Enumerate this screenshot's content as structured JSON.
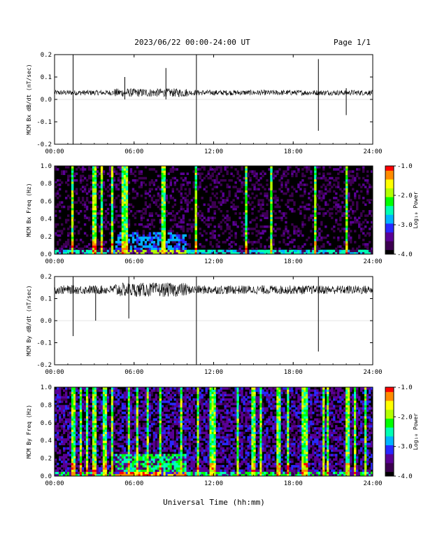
{
  "header": {
    "date_range": "2023/06/22  00:00-24:00 UT",
    "page": "Page 1/1"
  },
  "xlabel": "Universal Time (hh:mm)",
  "colorbar": {
    "label": "Log₁₀ Power",
    "ticks": [
      "-1.0",
      "-2.0",
      "-3.0",
      "-4.0"
    ],
    "range": [
      -4.0,
      -1.0
    ],
    "colors": [
      "#000000",
      "#3c0050",
      "#5a0096",
      "#2828ff",
      "#00b4ff",
      "#00ffb4",
      "#00ff00",
      "#b4ff00",
      "#ffff00",
      "#ff8c00",
      "#ff0000"
    ]
  },
  "chart_data": [
    {
      "type": "line",
      "ylabel": "MCM Bx dB/dt (nT/sec)",
      "xlim": [
        0,
        24
      ],
      "ylim": [
        -0.2,
        0.2
      ],
      "x_ticks": [
        "00:00",
        "06:00",
        "12:00",
        "18:00",
        "24:00"
      ],
      "y_ticks": [
        "0.2",
        "0.1",
        "0.0",
        "-0.1",
        "-0.2"
      ],
      "baseline": 0.03,
      "noise_amplitude": 0.012,
      "color": "#000000",
      "spikes": [
        {
          "x": 1.4,
          "y": [
            -0.2,
            0.2
          ]
        },
        {
          "x": 5.3,
          "y": [
            0.0,
            0.1
          ]
        },
        {
          "x": 8.4,
          "y": [
            0.0,
            0.14
          ]
        },
        {
          "x": 10.7,
          "y": [
            -0.2,
            0.2
          ]
        },
        {
          "x": 19.9,
          "y": [
            -0.14,
            0.18
          ]
        },
        {
          "x": 22.0,
          "y": [
            -0.07,
            0.05
          ]
        }
      ]
    },
    {
      "type": "heatmap",
      "ylabel": "MCM Bx Freq (Hz)",
      "xlim": [
        0,
        24
      ],
      "ylim": [
        0.0,
        1.0
      ],
      "x_ticks": [
        "00:00",
        "06:00",
        "12:00",
        "18:00",
        "24:00"
      ],
      "y_ticks": [
        "1.0",
        "0.8",
        "0.6",
        "0.4",
        "0.2",
        "0.0"
      ],
      "z_range": [
        -4.0,
        -1.0
      ],
      "bright_times": [
        1.3,
        1.4,
        3.0,
        3.6,
        4.3,
        5.2,
        5.5,
        8.2,
        10.7,
        14.4,
        16.4,
        19.7,
        22.0
      ]
    },
    {
      "type": "line",
      "ylabel": "MCM By dB/dt (nT/sec)",
      "xlim": [
        0,
        24
      ],
      "ylim": [
        -0.2,
        0.2
      ],
      "x_ticks": [
        "00:00",
        "06:00",
        "12:00",
        "18:00",
        "24:00"
      ],
      "y_ticks": [
        "0.2",
        "0.1",
        "0.0",
        "-0.1",
        "-0.2"
      ],
      "baseline": 0.14,
      "noise_amplitude": 0.02,
      "color": "#000000",
      "spikes": [
        {
          "x": 1.4,
          "y": [
            -0.07,
            0.2
          ]
        },
        {
          "x": 3.1,
          "y": [
            0.0,
            0.14
          ]
        },
        {
          "x": 5.6,
          "y": [
            0.01,
            0.2
          ]
        },
        {
          "x": 10.7,
          "y": [
            -0.2,
            0.2
          ]
        },
        {
          "x": 19.9,
          "y": [
            -0.14,
            0.2
          ]
        }
      ]
    },
    {
      "type": "heatmap",
      "ylabel": "MCM By Freq (Hz)",
      "xlim": [
        0,
        24
      ],
      "ylim": [
        0.0,
        1.0
      ],
      "x_ticks": [
        "00:00",
        "06:00",
        "12:00",
        "18:00",
        "24:00"
      ],
      "y_ticks": [
        "1.0",
        "0.8",
        "0.6",
        "0.4",
        "0.2",
        "0.0"
      ],
      "z_range": [
        -4.0,
        -1.0
      ],
      "bright_times": [
        1.3,
        1.5,
        2.0,
        2.5,
        3.0,
        3.8,
        4.4,
        5.6,
        6.2,
        7.0,
        8.0,
        9.5,
        10.8,
        11.7,
        12.0,
        13.8,
        15.0,
        15.5,
        16.9,
        17.6,
        18.8,
        19.0,
        20.3,
        20.6,
        22.1,
        22.6,
        23.4
      ]
    }
  ]
}
